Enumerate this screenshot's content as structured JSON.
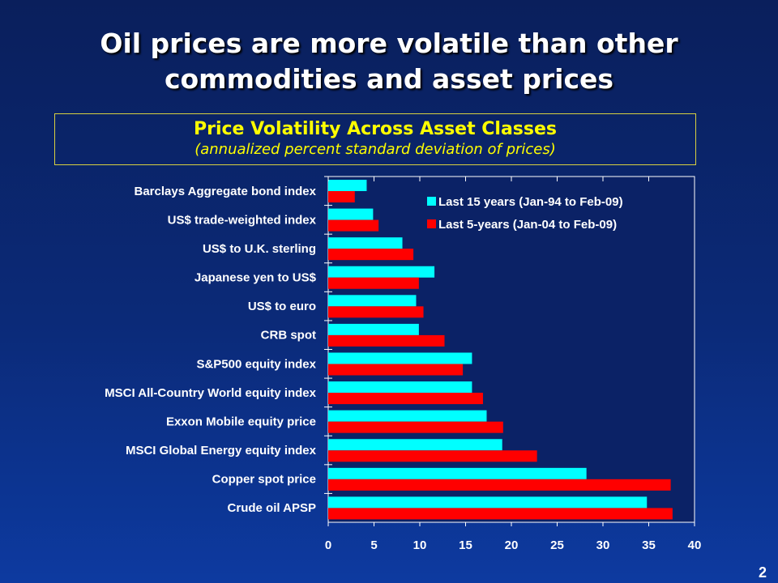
{
  "slide_title_line1": "Oil prices are more volatile than other",
  "slide_title_line2": "commodities and asset prices",
  "page_number": "2",
  "chart_data": {
    "type": "bar",
    "orientation": "horizontal",
    "title": "Price Volatility Across Asset Classes",
    "subtitle": "(annualized percent standard deviation of prices)",
    "categories": [
      "Barclays Aggregate bond index",
      "US$ trade-weighted index",
      "US$ to U.K. sterling",
      "Japanese yen to US$",
      "US$ to euro",
      "CRB spot",
      "S&P500 equity index",
      "MSCI All-Country World equity index",
      "Exxon Mobile equity price",
      "MSCI Global Energy equity index",
      "Copper spot price",
      "Crude oil APSP"
    ],
    "series": [
      {
        "name": "Last 15 years (Jan-94 to Feb-09)",
        "color": "#00ffff",
        "values": [
          4.2,
          4.9,
          8.1,
          11.6,
          9.6,
          9.9,
          15.7,
          15.7,
          17.3,
          19.0,
          28.2,
          34.8
        ]
      },
      {
        "name": "Last 5-years (Jan-04 to Feb-09)",
        "color": "#ff0000",
        "values": [
          2.9,
          5.5,
          9.3,
          9.9,
          10.4,
          12.7,
          14.7,
          16.9,
          19.1,
          22.8,
          37.4,
          37.6
        ]
      }
    ],
    "xlim": [
      0,
      40
    ],
    "xticks": [
      "0",
      "5",
      "10",
      "15",
      "20",
      "25",
      "30",
      "35",
      "40"
    ],
    "grid": false,
    "legend_position": "top-right"
  }
}
